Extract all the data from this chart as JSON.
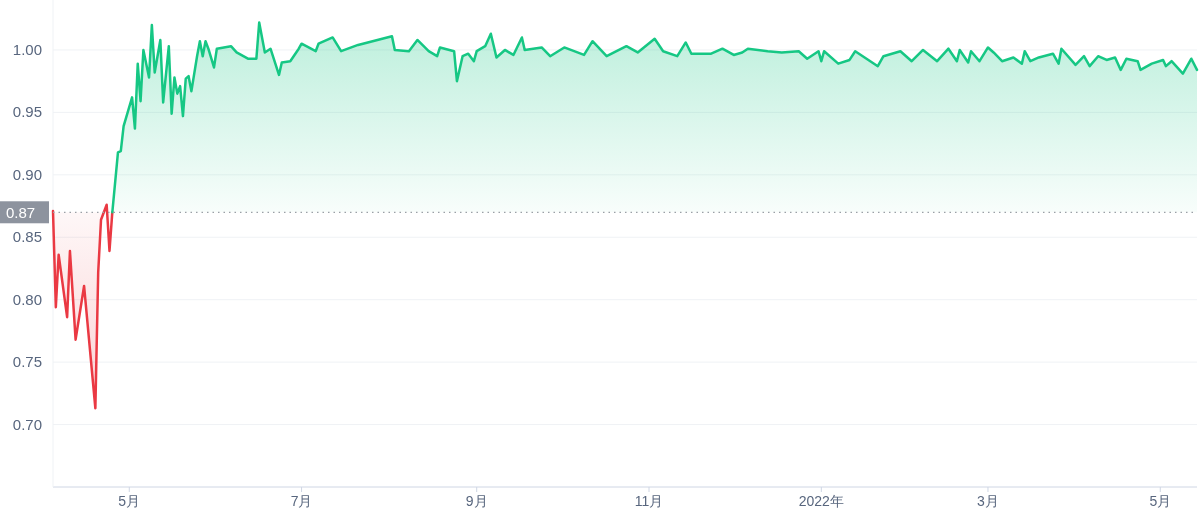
{
  "chart_data": {
    "type": "area",
    "grid": "y",
    "xlim": [
      "2021-04-04",
      "2022-05-14"
    ],
    "ylim": [
      0.65,
      1.04
    ],
    "xticks": [
      {
        "value": "2021-05-01",
        "label": "5月"
      },
      {
        "value": "2021-07-01",
        "label": "7月"
      },
      {
        "value": "2021-09-01",
        "label": "9月"
      },
      {
        "value": "2021-11-01",
        "label": "11月"
      },
      {
        "value": "2022-01-01",
        "label": "2022年"
      },
      {
        "value": "2022-03-01",
        "label": "3月"
      },
      {
        "value": "2022-05-01",
        "label": "5月"
      }
    ],
    "yticks": [
      {
        "value": 0.7,
        "label": "0.70"
      },
      {
        "value": 0.75,
        "label": "0.75"
      },
      {
        "value": 0.8,
        "label": "0.80"
      },
      {
        "value": 0.85,
        "label": "0.85"
      },
      {
        "value": 0.9,
        "label": "0.90"
      },
      {
        "value": 0.95,
        "label": "0.95"
      },
      {
        "value": 1.0,
        "label": "1.00"
      }
    ],
    "ref_lines": [
      {
        "axis": "y",
        "value": 0.87,
        "label": "0.87",
        "color": "#9aa0a6",
        "line_style": "dotted"
      }
    ],
    "series": [
      {
        "color": "#ea3943",
        "x": [
          "2021-04-04",
          "2021-04-05",
          "2021-04-06",
          "2021-04-09",
          "2021-04-10",
          "2021-04-12",
          "2021-04-15",
          "2021-04-19",
          "2021-04-20",
          "2021-04-21",
          "2021-04-23",
          "2021-04-24",
          "2021-04-25"
        ],
        "values": [
          0.871,
          0.794,
          0.836,
          0.786,
          0.839,
          0.768,
          0.811,
          0.713,
          0.822,
          0.864,
          0.876,
          0.839,
          0.87
        ]
      },
      {
        "color": "#16c784",
        "x": [
          "2021-04-25",
          "2021-04-27",
          "2021-04-28",
          "2021-04-29",
          "2021-05-02",
          "2021-05-03",
          "2021-05-04",
          "2021-05-05",
          "2021-05-06",
          "2021-05-08",
          "2021-05-09",
          "2021-05-10",
          "2021-05-12",
          "2021-05-13",
          "2021-05-15",
          "2021-05-16",
          "2021-05-17",
          "2021-05-18",
          "2021-05-19",
          "2021-05-20",
          "2021-05-21",
          "2021-05-22",
          "2021-05-23",
          "2021-05-25",
          "2021-05-26",
          "2021-05-27",
          "2021-05-28",
          "2021-05-29",
          "2021-05-31",
          "2021-06-01",
          "2021-06-06",
          "2021-06-08",
          "2021-06-12",
          "2021-06-15",
          "2021-06-16",
          "2021-06-18",
          "2021-06-20",
          "2021-06-23",
          "2021-06-24",
          "2021-06-27",
          "2021-06-30",
          "2021-07-01",
          "2021-07-06",
          "2021-07-07",
          "2021-07-12",
          "2021-07-15",
          "2021-07-21",
          "2021-08-02",
          "2021-08-03",
          "2021-08-08",
          "2021-08-11",
          "2021-08-15",
          "2021-08-18",
          "2021-08-19",
          "2021-08-24",
          "2021-08-25",
          "2021-08-27",
          "2021-08-29",
          "2021-08-31",
          "2021-09-01",
          "2021-09-04",
          "2021-09-06",
          "2021-09-08",
          "2021-09-11",
          "2021-09-14",
          "2021-09-17",
          "2021-09-18",
          "2021-09-24",
          "2021-09-27",
          "2021-10-02",
          "2021-10-09",
          "2021-10-12",
          "2021-10-17",
          "2021-10-24",
          "2021-10-28",
          "2021-11-03",
          "2021-11-06",
          "2021-11-11",
          "2021-11-14",
          "2021-11-16",
          "2021-11-23",
          "2021-11-27",
          "2021-12-01",
          "2021-12-04",
          "2021-12-06",
          "2021-12-13",
          "2021-12-18",
          "2021-12-24",
          "2021-12-27",
          "2021-12-31",
          "2022-01-01",
          "2022-01-02",
          "2022-01-07",
          "2022-01-11",
          "2022-01-13",
          "2022-01-21",
          "2022-01-23",
          "2022-01-29",
          "2022-02-02",
          "2022-02-06",
          "2022-02-11",
          "2022-02-15",
          "2022-02-18",
          "2022-02-19",
          "2022-02-22",
          "2022-02-23",
          "2022-02-26",
          "2022-03-01",
          "2022-03-03",
          "2022-03-06",
          "2022-03-10",
          "2022-03-13",
          "2022-03-14",
          "2022-03-16",
          "2022-03-19",
          "2022-03-24",
          "2022-03-26",
          "2022-03-27",
          "2022-04-01",
          "2022-04-04",
          "2022-04-06",
          "2022-04-09",
          "2022-04-12",
          "2022-04-15",
          "2022-04-17",
          "2022-04-19",
          "2022-04-23",
          "2022-04-24",
          "2022-04-28",
          "2022-05-02",
          "2022-05-03",
          "2022-05-05",
          "2022-05-09",
          "2022-05-12",
          "2022-05-14"
        ],
        "values": [
          0.87,
          0.918,
          0.919,
          0.939,
          0.962,
          0.937,
          0.989,
          0.959,
          1.0,
          0.978,
          1.02,
          0.982,
          1.008,
          0.958,
          1.003,
          0.949,
          0.978,
          0.965,
          0.971,
          0.947,
          0.977,
          0.979,
          0.967,
          0.995,
          1.007,
          0.995,
          1.007,
          1.001,
          0.986,
          1.001,
          1.003,
          0.998,
          0.993,
          0.993,
          1.022,
          0.998,
          1.001,
          0.98,
          0.99,
          0.991,
          1.001,
          1.005,
          0.999,
          1.005,
          1.01,
          0.999,
          1.004,
          1.011,
          1.0,
          0.999,
          1.008,
          0.999,
          0.995,
          1.002,
          0.999,
          0.975,
          0.995,
          0.997,
          0.991,
          0.999,
          1.003,
          1.013,
          0.994,
          1.0,
          0.996,
          1.01,
          1.0,
          1.002,
          0.995,
          1.002,
          0.996,
          1.007,
          0.995,
          1.003,
          0.998,
          1.009,
          0.999,
          0.995,
          1.006,
          0.997,
          0.997,
          1.001,
          0.996,
          0.998,
          1.001,
          0.999,
          0.998,
          0.999,
          0.993,
          0.999,
          0.991,
          0.999,
          0.989,
          0.992,
          0.999,
          0.987,
          0.995,
          0.999,
          0.991,
          1.0,
          0.991,
          1.001,
          0.991,
          1.0,
          0.99,
          0.999,
          0.991,
          1.002,
          0.998,
          0.991,
          0.994,
          0.989,
          0.999,
          0.991,
          0.994,
          0.997,
          0.989,
          1.001,
          0.988,
          0.995,
          0.987,
          0.995,
          0.992,
          0.994,
          0.984,
          0.993,
          0.991,
          0.984,
          0.989,
          0.992,
          0.987,
          0.991,
          0.981,
          0.993,
          0.984
        ]
      }
    ]
  }
}
